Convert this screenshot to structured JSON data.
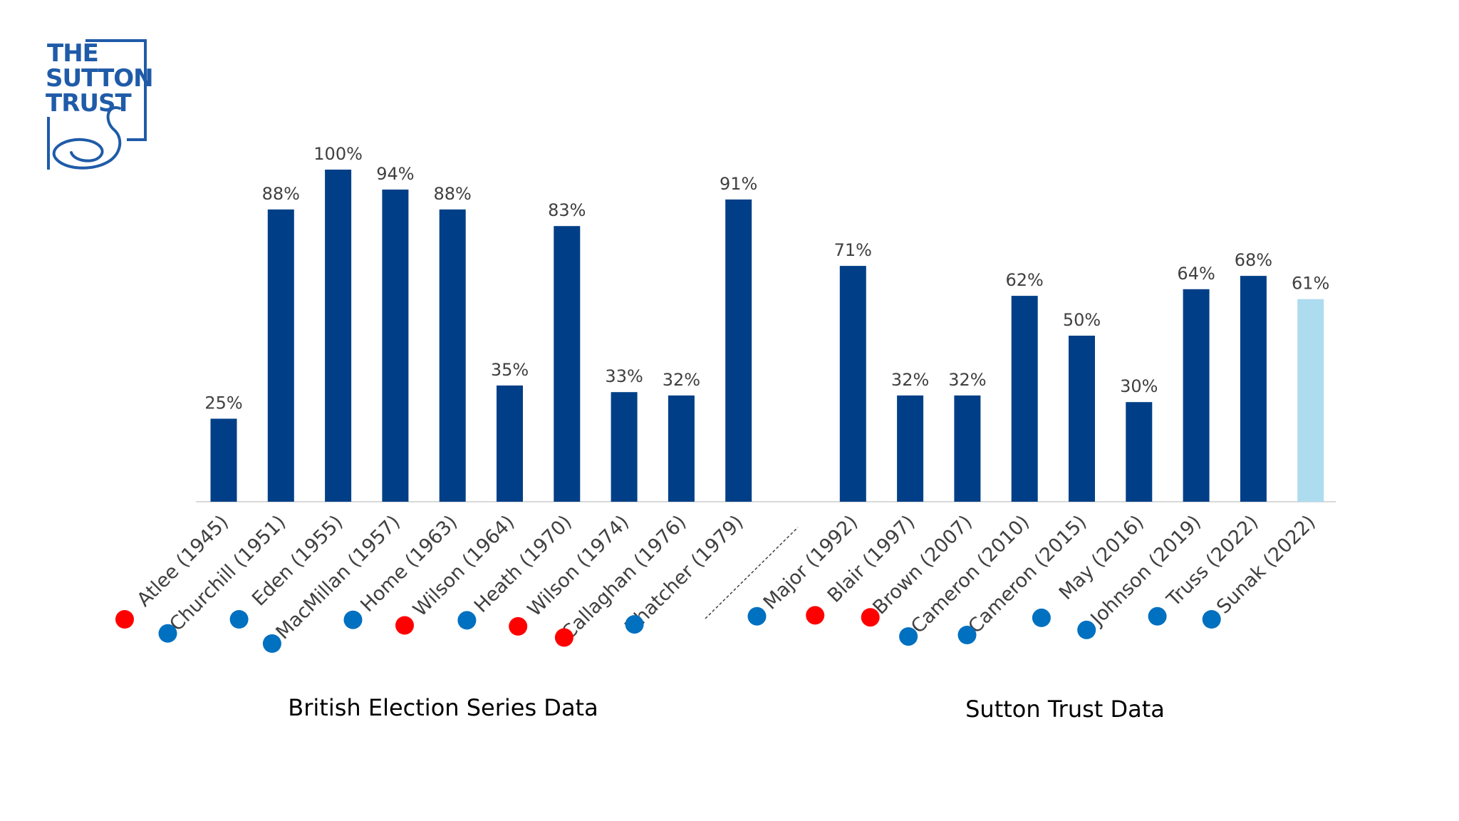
{
  "logo": {
    "line1": "THE",
    "line2": "SUTTON",
    "line3": "TRUST",
    "color": "#1f5ba8"
  },
  "colors": {
    "bar": "#003f87",
    "bar_highlight": "#aedcef",
    "conservative": "#0070c0",
    "labour": "#ff0000",
    "axis": "#d9d9d9"
  },
  "chart_data": {
    "type": "bar",
    "categories": [
      "Atlee (1945)",
      "Churchill (1951)",
      "Eden (1955)",
      "MacMillan (1957)",
      "Home (1963)",
      "Wilson (1964)",
      "Heath (1970)",
      "Wilson (1974)",
      "Callaghan (1976)",
      "Thatcher (1979)",
      "",
      "Major (1992)",
      "Blair (1997)",
      "Brown (2007)",
      "Cameron (2010)",
      "Cameron (2015)",
      "May (2016)",
      "Johnson (2019)",
      "Truss (2022)",
      "Sunak (2022)"
    ],
    "values": [
      25,
      88,
      100,
      94,
      88,
      35,
      83,
      33,
      32,
      91,
      null,
      71,
      32,
      32,
      62,
      50,
      30,
      64,
      68,
      61
    ],
    "data_labels": [
      "25%",
      "88%",
      "100%",
      "94%",
      "88%",
      "35%",
      "83%",
      "33%",
      "32%",
      "91%",
      "",
      "71%",
      "32%",
      "32%",
      "62%",
      "50%",
      "30%",
      "64%",
      "68%",
      "61%"
    ],
    "party": [
      "labour",
      "conservative",
      "conservative",
      "conservative",
      "conservative",
      "labour",
      "conservative",
      "labour",
      "labour",
      "conservative",
      "",
      "conservative",
      "labour",
      "labour",
      "conservative",
      "conservative",
      "conservative",
      "conservative",
      "conservative",
      "conservative"
    ],
    "highlight": [
      false,
      false,
      false,
      false,
      false,
      false,
      false,
      false,
      false,
      false,
      false,
      false,
      false,
      false,
      false,
      false,
      false,
      false,
      false,
      true
    ],
    "ylim": [
      0,
      100
    ],
    "grid": false,
    "group_labels": [
      "British Election Series Data",
      "Sutton Trust Data"
    ]
  }
}
